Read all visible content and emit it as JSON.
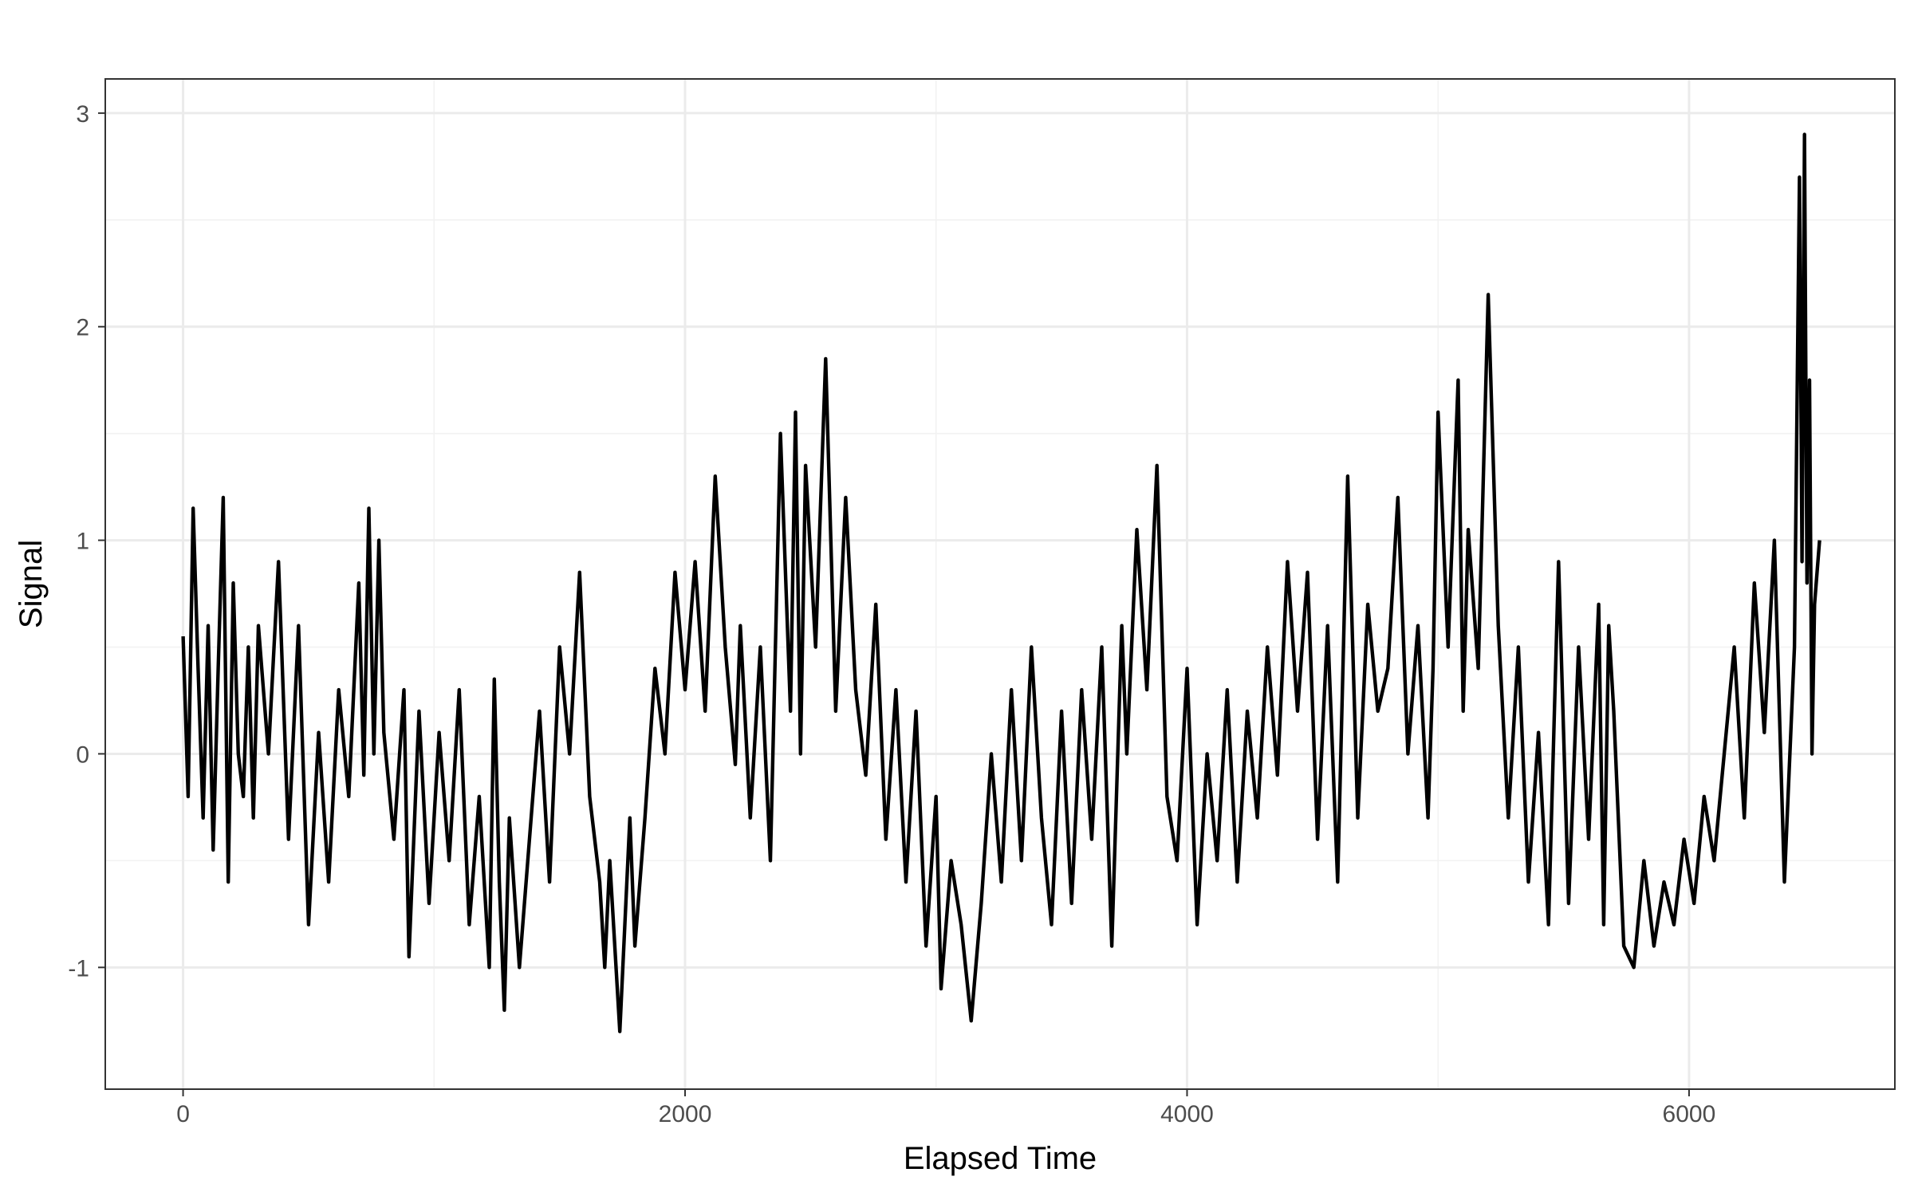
{
  "chart_data": {
    "type": "line",
    "title": "",
    "xlabel": "Elapsed Time",
    "ylabel": "Signal",
    "xlim": [
      -310,
      6820
    ],
    "ylim": [
      -1.57,
      3.16
    ],
    "x_ticks": [
      0,
      2000,
      4000,
      6000
    ],
    "x_tick_labels": [
      "0",
      "2000",
      "4000",
      "6000"
    ],
    "y_ticks": [
      -1,
      0,
      1,
      2,
      3
    ],
    "y_tick_labels": [
      "-1",
      "0",
      "1",
      "2",
      "3"
    ],
    "x_minor_ticks": [
      1000,
      3000,
      5000
    ],
    "y_minor_ticks": [
      -0.5,
      0.5,
      1.5,
      2.5
    ],
    "grid": true,
    "legend": "none",
    "colors": {
      "line": "#000000",
      "grid_major": "#ebebeb",
      "grid_minor": "#f2f2f2",
      "panel_border": "#333333"
    },
    "series": [
      {
        "x": [
          0,
          20,
          40,
          60,
          80,
          100,
          120,
          140,
          160,
          180,
          200,
          220,
          240,
          260,
          280,
          300,
          340,
          380,
          420,
          460,
          500,
          540,
          580,
          620,
          660,
          700,
          720,
          740,
          760,
          780,
          800,
          840,
          880,
          900,
          940,
          980,
          1020,
          1060,
          1100,
          1140,
          1180,
          1220,
          1240,
          1260,
          1280,
          1300,
          1340,
          1380,
          1420,
          1460,
          1500,
          1540,
          1580,
          1620,
          1660,
          1680,
          1700,
          1740,
          1780,
          1800,
          1840,
          1880,
          1920,
          1960,
          2000,
          2040,
          2080,
          2120,
          2160,
          2200,
          2220,
          2260,
          2300,
          2340,
          2380,
          2420,
          2440,
          2460,
          2480,
          2520,
          2560,
          2600,
          2640,
          2680,
          2720,
          2760,
          2800,
          2840,
          2880,
          2920,
          2960,
          3000,
          3020,
          3060,
          3100,
          3140,
          3180,
          3220,
          3260,
          3300,
          3340,
          3380,
          3420,
          3460,
          3500,
          3540,
          3580,
          3620,
          3660,
          3700,
          3740,
          3760,
          3800,
          3840,
          3880,
          3920,
          3960,
          4000,
          4040,
          4080,
          4120,
          4160,
          4200,
          4240,
          4280,
          4320,
          4360,
          4400,
          4440,
          4480,
          4520,
          4560,
          4600,
          4640,
          4680,
          4720,
          4760,
          4800,
          4840,
          4880,
          4920,
          4960,
          4980,
          5000,
          5040,
          5080,
          5100,
          5120,
          5160,
          5200,
          5240,
          5280,
          5320,
          5360,
          5400,
          5440,
          5480,
          5520,
          5560,
          5600,
          5640,
          5660,
          5680,
          5700,
          5740,
          5780,
          5820,
          5860,
          5900,
          5940,
          5980,
          6020,
          6060,
          6100,
          6140,
          6180,
          6220,
          6260,
          6300,
          6340,
          6380,
          6420,
          6440,
          6450,
          6460,
          6470,
          6480,
          6490,
          6500,
          6520
        ],
        "y": [
          0.55,
          -0.2,
          1.15,
          0.4,
          -0.3,
          0.6,
          -0.45,
          0.4,
          1.2,
          -0.6,
          0.8,
          0.0,
          -0.2,
          0.5,
          -0.3,
          0.6,
          0.0,
          0.9,
          -0.4,
          0.6,
          -0.8,
          0.1,
          -0.6,
          0.3,
          -0.2,
          0.8,
          -0.1,
          1.15,
          0.0,
          1.0,
          0.1,
          -0.4,
          0.3,
          -0.95,
          0.2,
          -0.7,
          0.1,
          -0.5,
          0.3,
          -0.8,
          -0.2,
          -1.0,
          0.35,
          -0.6,
          -1.2,
          -0.3,
          -1.0,
          -0.4,
          0.2,
          -0.6,
          0.5,
          0.0,
          0.85,
          -0.2,
          -0.6,
          -1.0,
          -0.5,
          -1.3,
          -0.3,
          -0.9,
          -0.3,
          0.4,
          0.0,
          0.85,
          0.3,
          0.9,
          0.2,
          1.3,
          0.5,
          -0.05,
          0.6,
          -0.3,
          0.5,
          -0.5,
          1.5,
          0.2,
          1.6,
          0.0,
          1.35,
          0.5,
          1.85,
          0.2,
          1.2,
          0.3,
          -0.1,
          0.7,
          -0.4,
          0.3,
          -0.6,
          0.2,
          -0.9,
          -0.2,
          -1.1,
          -0.5,
          -0.8,
          -1.25,
          -0.7,
          0.0,
          -0.6,
          0.3,
          -0.5,
          0.5,
          -0.3,
          -0.8,
          0.2,
          -0.7,
          0.3,
          -0.4,
          0.5,
          -0.9,
          0.6,
          0.0,
          1.05,
          0.3,
          1.35,
          -0.2,
          -0.5,
          0.4,
          -0.8,
          0.0,
          -0.5,
          0.3,
          -0.6,
          0.2,
          -0.3,
          0.5,
          -0.1,
          0.9,
          0.2,
          0.85,
          -0.4,
          0.6,
          -0.6,
          1.3,
          -0.3,
          0.7,
          0.2,
          0.4,
          1.2,
          0.0,
          0.6,
          -0.3,
          0.4,
          1.6,
          0.5,
          1.75,
          0.2,
          1.05,
          0.4,
          2.15,
          0.6,
          -0.3,
          0.5,
          -0.6,
          0.1,
          -0.8,
          0.9,
          -0.7,
          0.5,
          -0.4,
          0.7,
          -0.8,
          0.6,
          0.2,
          -0.9,
          -1.0,
          -0.5,
          -0.9,
          -0.6,
          -0.8,
          -0.4,
          -0.7,
          -0.2,
          -0.5,
          0.0,
          0.5,
          -0.3,
          0.8,
          0.1,
          1.0,
          -0.6,
          0.5,
          2.7,
          0.9,
          2.9,
          0.8,
          1.75,
          0.0,
          0.7,
          1.0
        ]
      }
    ]
  }
}
